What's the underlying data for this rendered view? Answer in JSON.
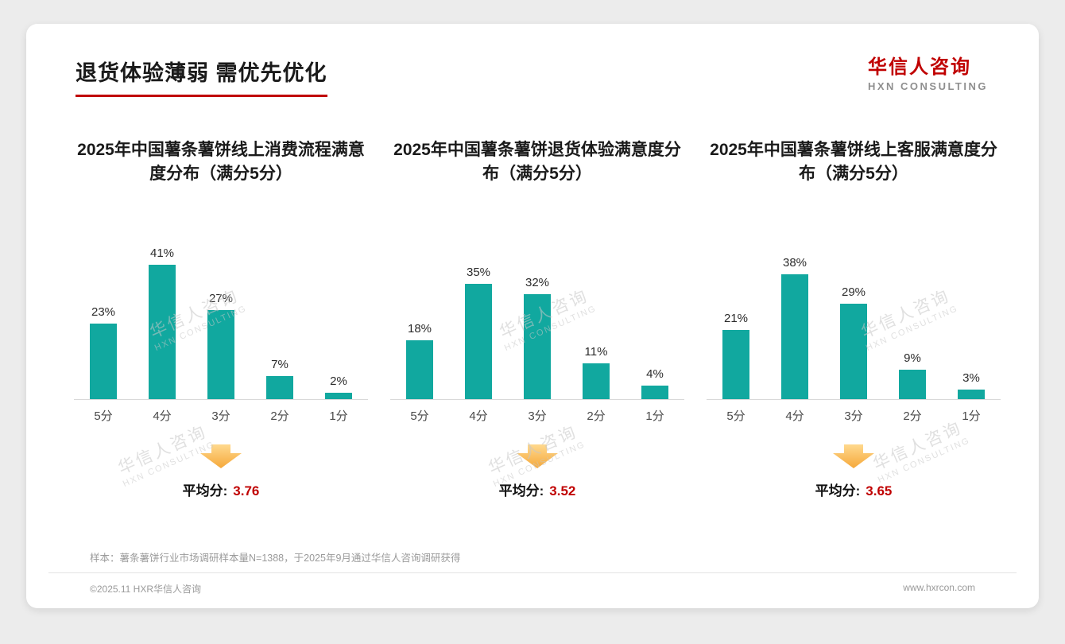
{
  "header": {
    "title": "退货体验薄弱 需优先优化",
    "logo": {
      "cn": "华信人咨询",
      "en": "HXN CONSULTING"
    }
  },
  "watermark": {
    "cn": "华信人咨询",
    "en": "HXN CONSULTING"
  },
  "chart_data": [
    {
      "type": "bar",
      "title": "2025年中国薯条薯饼线上消费流程满意度分布（满分5分）",
      "categories": [
        "5分",
        "4分",
        "3分",
        "2分",
        "1分"
      ],
      "values": [
        23,
        41,
        27,
        7,
        2
      ],
      "unit": "%",
      "ylim": [
        0,
        45
      ],
      "grid": false,
      "average_label": "平均分:",
      "average_value": "3.76"
    },
    {
      "type": "bar",
      "title": "2025年中国薯条薯饼退货体验满意度分布（满分5分）",
      "categories": [
        "5分",
        "4分",
        "3分",
        "2分",
        "1分"
      ],
      "values": [
        18,
        35,
        32,
        11,
        4
      ],
      "unit": "%",
      "ylim": [
        0,
        45
      ],
      "grid": false,
      "average_label": "平均分:",
      "average_value": "3.52"
    },
    {
      "type": "bar",
      "title": "2025年中国薯条薯饼线上客服满意度分布（满分5分）",
      "categories": [
        "5分",
        "4分",
        "3分",
        "2分",
        "1分"
      ],
      "values": [
        21,
        38,
        29,
        9,
        3
      ],
      "unit": "%",
      "ylim": [
        0,
        45
      ],
      "grid": false,
      "average_label": "平均分:",
      "average_value": "3.65"
    }
  ],
  "footnote": "样本：薯条薯饼行业市场调研样本量N=1388，于2025年9月通过华信人咨询调研获得",
  "footer": {
    "left": "©2025.11 HXR华信人咨询",
    "right": "www.hxrcon.com"
  },
  "colors": {
    "bar": "#11a89f",
    "accent_red": "#c00000",
    "arrow_top": "#ffd98e",
    "arrow_bottom": "#f5a83a"
  }
}
